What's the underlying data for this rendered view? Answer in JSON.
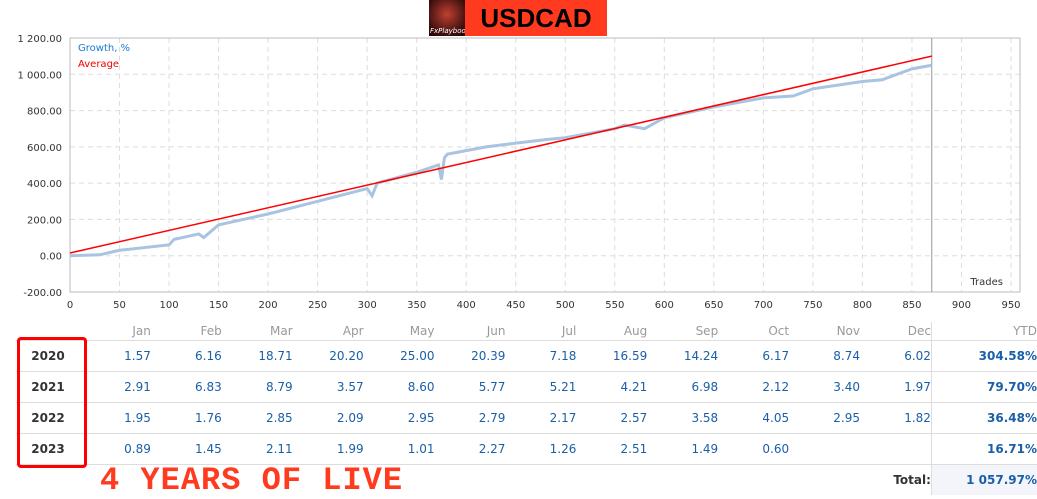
{
  "header": {
    "logo_text": "FxPlaybook",
    "symbol": "USDCAD"
  },
  "chart_data": {
    "type": "line",
    "xlabel": "Trades",
    "ylabel": "",
    "xlim": [
      0,
      950
    ],
    "ylim": [
      -200,
      1200
    ],
    "xticks": [
      0,
      50,
      100,
      150,
      200,
      250,
      300,
      350,
      400,
      450,
      500,
      550,
      600,
      650,
      700,
      750,
      800,
      850,
      900,
      950
    ],
    "yticks": [
      -200,
      0,
      200,
      400,
      600,
      800,
      1000,
      1200
    ],
    "ytick_labels": [
      "-200.00",
      "0.00",
      "200.00",
      "400.00",
      "600.00",
      "800.00",
      "1 000.00",
      "1 200.00"
    ],
    "legend": "top-left",
    "grid": true,
    "series": [
      {
        "name": "Growth, %",
        "color": "#a8c4e0",
        "x": [
          0,
          30,
          50,
          100,
          105,
          130,
          135,
          150,
          200,
          250,
          300,
          305,
          310,
          350,
          372,
          375,
          378,
          381,
          420,
          480,
          500,
          550,
          560,
          580,
          600,
          650,
          700,
          730,
          750,
          800,
          820,
          850,
          870
        ],
        "y": [
          0,
          5,
          30,
          60,
          90,
          120,
          100,
          170,
          230,
          300,
          370,
          330,
          400,
          460,
          500,
          420,
          540,
          560,
          600,
          640,
          650,
          700,
          720,
          700,
          760,
          820,
          870,
          880,
          920,
          960,
          970,
          1030,
          1050
        ]
      },
      {
        "name": "Average",
        "color": "#ff0000",
        "x": [
          0,
          870
        ],
        "y": [
          15,
          1100
        ]
      }
    ],
    "cursor_x": 870
  },
  "table": {
    "months": [
      "Jan",
      "Feb",
      "Mar",
      "Apr",
      "May",
      "Jun",
      "Jul",
      "Aug",
      "Sep",
      "Oct",
      "Nov",
      "Dec"
    ],
    "ytd_label": "YTD",
    "rows": [
      {
        "year": "2020",
        "v": [
          "1.57",
          "6.16",
          "18.71",
          "20.20",
          "25.00",
          "20.39",
          "7.18",
          "16.59",
          "14.24",
          "6.17",
          "8.74",
          "6.02"
        ],
        "ytd": "304.58%"
      },
      {
        "year": "2021",
        "v": [
          "2.91",
          "6.83",
          "8.79",
          "3.57",
          "8.60",
          "5.77",
          "5.21",
          "4.21",
          "6.98",
          "2.12",
          "3.40",
          "1.97"
        ],
        "ytd": "79.70%"
      },
      {
        "year": "2022",
        "v": [
          "1.95",
          "1.76",
          "2.85",
          "2.09",
          "2.95",
          "2.79",
          "2.17",
          "2.57",
          "3.58",
          "4.05",
          "2.95",
          "1.82"
        ],
        "ytd": "36.48%"
      },
      {
        "year": "2023",
        "v": [
          "0.89",
          "1.45",
          "2.11",
          "1.99",
          "1.01",
          "2.27",
          "1.26",
          "2.51",
          "1.49",
          "0.60",
          "",
          ""
        ],
        "ytd": "16.71%"
      }
    ],
    "total_label": "Total:",
    "total": "1 057.97%"
  },
  "banner": "4 YEARS OF LIVE"
}
